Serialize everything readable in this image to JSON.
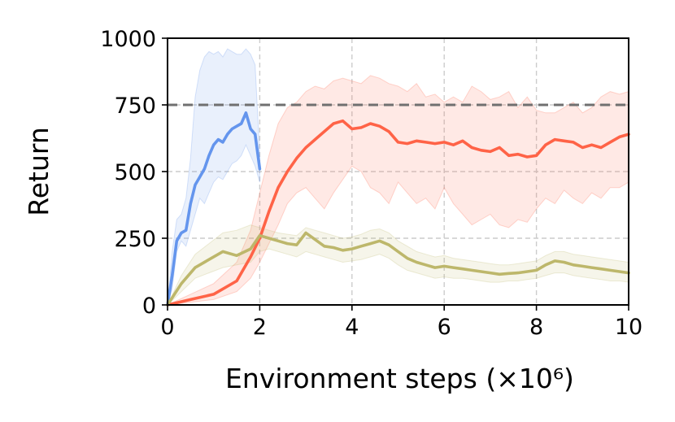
{
  "chart_data": {
    "type": "line",
    "title": "",
    "xlabel": "Environment steps (×10⁶)",
    "ylabel": "Return",
    "xlim": [
      0,
      10
    ],
    "ylim": [
      0,
      1000
    ],
    "xticks": [
      0,
      2,
      4,
      6,
      8,
      10
    ],
    "xtick_labels": [
      "0",
      "2",
      "4",
      "6",
      "8",
      "10"
    ],
    "yticks": [
      0,
      250,
      500,
      750,
      1000
    ],
    "ytick_labels": [
      "0",
      "250",
      "500",
      "750",
      "1000"
    ],
    "grid": "dashed, both axes",
    "legend": "none",
    "reference_line": {
      "y": 750,
      "style": "dashed",
      "color": "#707070"
    },
    "series": [
      {
        "color": "#6495ED",
        "x": [
          0,
          0.1,
          0.2,
          0.3,
          0.4,
          0.5,
          0.6,
          0.7,
          0.8,
          0.9,
          1.0,
          1.1,
          1.2,
          1.3,
          1.4,
          1.5,
          1.6,
          1.7,
          1.8,
          1.9,
          2.0
        ],
        "mean": [
          0,
          110,
          240,
          270,
          280,
          380,
          450,
          480,
          510,
          560,
          600,
          620,
          610,
          640,
          660,
          670,
          680,
          720,
          660,
          640,
          510
        ],
        "lower": [
          0,
          60,
          200,
          240,
          220,
          280,
          340,
          400,
          380,
          420,
          460,
          480,
          470,
          500,
          530,
          540,
          560,
          600,
          560,
          520,
          460
        ],
        "upper": [
          0,
          200,
          320,
          340,
          400,
          550,
          780,
          880,
          930,
          950,
          940,
          950,
          930,
          960,
          950,
          940,
          940,
          960,
          940,
          900,
          560
        ]
      },
      {
        "color": "#FF6347",
        "x": [
          0,
          0.5,
          1.0,
          1.5,
          1.8,
          2.0,
          2.2,
          2.4,
          2.6,
          2.8,
          3.0,
          3.2,
          3.4,
          3.6,
          3.8,
          4.0,
          4.2,
          4.4,
          4.6,
          4.8,
          5.0,
          5.2,
          5.4,
          5.6,
          5.8,
          6.0,
          6.2,
          6.4,
          6.6,
          6.8,
          7.0,
          7.2,
          7.4,
          7.6,
          7.8,
          8.0,
          8.2,
          8.4,
          8.6,
          8.8,
          9.0,
          9.2,
          9.4,
          9.6,
          9.8,
          10.0
        ],
        "mean": [
          0,
          20,
          40,
          90,
          180,
          250,
          350,
          440,
          500,
          550,
          590,
          620,
          650,
          680,
          690,
          660,
          665,
          680,
          670,
          650,
          610,
          605,
          615,
          610,
          605,
          610,
          600,
          615,
          590,
          580,
          575,
          590,
          560,
          565,
          555,
          560,
          600,
          620,
          615,
          610,
          590,
          600,
          590,
          610,
          630,
          640
        ],
        "lower": [
          0,
          10,
          20,
          50,
          100,
          160,
          230,
          300,
          380,
          420,
          440,
          400,
          360,
          420,
          470,
          520,
          500,
          440,
          420,
          380,
          460,
          420,
          380,
          400,
          360,
          440,
          380,
          340,
          300,
          320,
          340,
          300,
          290,
          320,
          310,
          360,
          400,
          380,
          430,
          400,
          380,
          420,
          400,
          440,
          440,
          460
        ],
        "upper": [
          0,
          40,
          80,
          160,
          280,
          420,
          560,
          680,
          740,
          760,
          800,
          820,
          810,
          840,
          850,
          840,
          830,
          860,
          850,
          830,
          820,
          800,
          830,
          780,
          790,
          760,
          780,
          760,
          820,
          800,
          770,
          780,
          800,
          740,
          780,
          730,
          720,
          720,
          740,
          760,
          720,
          740,
          780,
          800,
          790,
          800
        ]
      },
      {
        "color": "#BDB76B",
        "x": [
          0,
          0.3,
          0.6,
          0.9,
          1.2,
          1.5,
          1.8,
          2.0,
          2.2,
          2.4,
          2.6,
          2.8,
          3.0,
          3.2,
          3.4,
          3.6,
          3.8,
          4.0,
          4.2,
          4.4,
          4.6,
          4.8,
          5.0,
          5.2,
          5.4,
          5.6,
          5.8,
          6.0,
          6.2,
          6.4,
          6.6,
          6.8,
          7.0,
          7.2,
          7.4,
          7.6,
          7.8,
          8.0,
          8.2,
          8.4,
          8.6,
          8.8,
          9.0,
          9.2,
          9.4,
          9.6,
          9.8,
          10.0
        ],
        "mean": [
          0,
          80,
          140,
          170,
          200,
          185,
          210,
          260,
          250,
          240,
          230,
          225,
          270,
          245,
          220,
          215,
          205,
          210,
          220,
          230,
          240,
          225,
          200,
          175,
          160,
          150,
          140,
          145,
          140,
          135,
          130,
          125,
          120,
          115,
          118,
          120,
          125,
          130,
          150,
          165,
          160,
          150,
          145,
          140,
          135,
          130,
          125,
          120
        ],
        "lower": [
          0,
          50,
          100,
          120,
          140,
          150,
          160,
          200,
          210,
          200,
          190,
          180,
          200,
          190,
          180,
          170,
          160,
          165,
          170,
          180,
          190,
          175,
          150,
          130,
          120,
          110,
          100,
          105,
          100,
          100,
          95,
          90,
          85,
          85,
          90,
          90,
          95,
          100,
          110,
          120,
          120,
          110,
          105,
          100,
          95,
          90,
          90,
          85
        ],
        "upper": [
          0,
          110,
          190,
          230,
          270,
          280,
          300,
          290,
          280,
          270,
          265,
          260,
          290,
          280,
          270,
          260,
          250,
          255,
          265,
          280,
          285,
          270,
          240,
          220,
          200,
          190,
          180,
          185,
          175,
          170,
          165,
          160,
          155,
          150,
          150,
          155,
          160,
          165,
          185,
          200,
          200,
          190,
          185,
          180,
          175,
          170,
          165,
          160
        ]
      }
    ]
  }
}
